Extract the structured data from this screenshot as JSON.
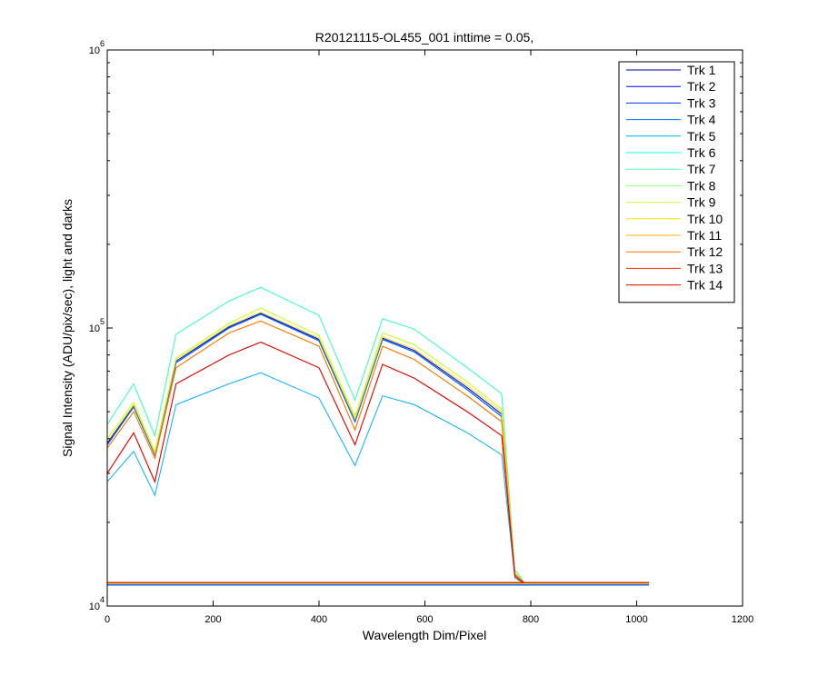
{
  "chart_data": {
    "type": "line",
    "title": "R20121115-OL455_001 inttime = 0.05,",
    "xlabel": "Wavelength Dim/Pixel",
    "ylabel": "Signal Intensity (ADU/pix/sec), light and darks",
    "xlim": [
      0,
      1200
    ],
    "ylim": [
      10000,
      1000000
    ],
    "yscale": "log",
    "grid": false,
    "legend_position": "top-right",
    "x_ticks": [
      0,
      200,
      400,
      600,
      800,
      1000,
      1200
    ],
    "x_tick_labels": [
      "0",
      "200",
      "400",
      "600",
      "800",
      "1000",
      "1200"
    ],
    "y_ticks": [
      {
        "value": 10000,
        "base": "10",
        "exp": "4"
      },
      {
        "value": 100000,
        "base": "10",
        "exp": "5"
      },
      {
        "value": 1000000,
        "base": "10",
        "exp": "6"
      }
    ],
    "series": [
      {
        "name": "Trk 1",
        "color": "#0000a8",
        "values": [
          38000,
          52000,
          35000,
          75000,
          100000,
          112000,
          90000,
          46000,
          91000,
          82000,
          60000,
          48000,
          13000,
          12000,
          12000,
          12000
        ],
        "dark": 11900
      },
      {
        "name": "Trk 2",
        "color": "#0000e0",
        "values": [
          38500,
          52500,
          35500,
          76000,
          101000,
          113000,
          91000,
          47000,
          92000,
          83000,
          61000,
          49000,
          13000,
          12000,
          12000,
          12000
        ],
        "dark": 11950
      },
      {
        "name": "Trk 3",
        "color": "#0030ff",
        "values": [
          38000,
          52000,
          35000,
          75000,
          100000,
          112000,
          90000,
          46000,
          91000,
          82000,
          60000,
          48000,
          13000,
          12000,
          12000,
          12000
        ],
        "dark": 11950
      },
      {
        "name": "Trk 4",
        "color": "#0070ff",
        "values": [
          38000,
          52000,
          35000,
          75000,
          100000,
          112000,
          90000,
          46000,
          91000,
          82000,
          60000,
          48000,
          13000,
          12000,
          12000,
          12000
        ],
        "dark": 12000
      },
      {
        "name": "Trk 5",
        "color": "#00b0ff",
        "values": [
          28000,
          36000,
          25000,
          53000,
          63000,
          69000,
          56000,
          32000,
          57000,
          53000,
          42000,
          35000,
          12600,
          12000,
          12000,
          12000
        ],
        "dark": 12000
      },
      {
        "name": "Trk 6",
        "color": "#10ffef",
        "values": [
          45000,
          63000,
          41000,
          95000,
          125000,
          140000,
          111000,
          55000,
          108000,
          99000,
          72000,
          58000,
          13500,
          12000,
          12000,
          12000
        ],
        "dark": 12000
      },
      {
        "name": "Trk 7",
        "color": "#50ffaf",
        "values": [
          45000,
          63000,
          41000,
          95000,
          125000,
          140000,
          111000,
          55000,
          108000,
          99000,
          72000,
          58000,
          13500,
          12000,
          12000,
          12000
        ],
        "dark": 12050
      },
      {
        "name": "Trk 8",
        "color": "#90ff6f",
        "values": [
          40000,
          54000,
          36000,
          78000,
          104000,
          118000,
          94000,
          48000,
          96000,
          87000,
          64000,
          51000,
          13200,
          12000,
          12000,
          12000
        ],
        "dark": 12050
      },
      {
        "name": "Trk 9",
        "color": "#d0ff2f",
        "values": [
          40000,
          54000,
          36000,
          78000,
          104000,
          118000,
          94000,
          48000,
          96000,
          87000,
          64000,
          51000,
          13200,
          12000,
          12000,
          12000
        ],
        "dark": 12050
      },
      {
        "name": "Trk 10",
        "color": "#ffe000",
        "values": [
          39000,
          53000,
          35500,
          77000,
          102000,
          114000,
          92000,
          47000,
          93000,
          84000,
          62000,
          50000,
          13100,
          12000,
          12000,
          12000
        ],
        "dark": 12100
      },
      {
        "name": "Trk 11",
        "color": "#ffb000",
        "values": [
          37000,
          50000,
          34000,
          72000,
          96000,
          106000,
          86000,
          43000,
          86000,
          77000,
          57000,
          46000,
          13000,
          12000,
          12000,
          12000
        ],
        "dark": 12100
      },
      {
        "name": "Trk 12",
        "color": "#ff7000",
        "values": [
          37000,
          50000,
          34000,
          72000,
          96000,
          106000,
          86000,
          43000,
          86000,
          77000,
          57000,
          46000,
          13000,
          12000,
          12000,
          12000
        ],
        "dark": 12100
      },
      {
        "name": "Trk 13",
        "color": "#ff3000",
        "values": [
          30000,
          42000,
          28000,
          63000,
          80000,
          89000,
          72000,
          38000,
          74000,
          66000,
          50000,
          41000,
          12800,
          12000,
          12000,
          12000
        ],
        "dark": 12150
      },
      {
        "name": "Trk 14",
        "color": "#e00000",
        "values": [
          30000,
          42000,
          28000,
          63000,
          80000,
          89000,
          72000,
          38000,
          74000,
          66000,
          50000,
          41000,
          12800,
          12000,
          12000,
          12000
        ],
        "dark": 12150
      }
    ],
    "x": [
      0,
      50,
      90,
      130,
      230,
      290,
      400,
      468,
      520,
      580,
      680,
      745,
      770,
      790,
      900,
      1023
    ]
  }
}
